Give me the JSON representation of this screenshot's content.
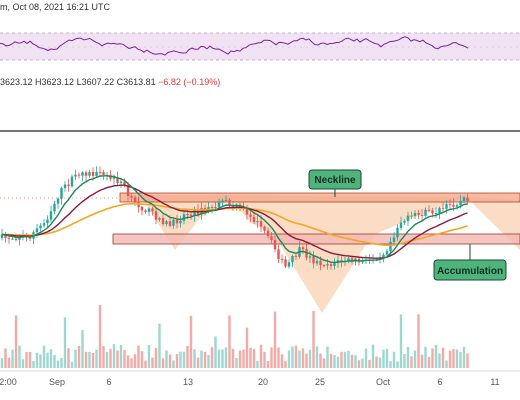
{
  "header": {
    "date_text": "m, Oct 08, 2021 16:21 UTC",
    "ohlc_text": "3623.12 H3623.12 L3607.22 C3613.81",
    "change_text": "−6.82 (−0.19%)"
  },
  "annotations": {
    "neckline_label": "Neckline",
    "accumulation_label": "Accumulation"
  },
  "chart_data": {
    "type": "line",
    "title": "",
    "x_tick_labels": [
      "2:00",
      "Sep",
      "6",
      "13",
      "20",
      "25",
      "Oct",
      "6",
      "11"
    ],
    "series_colors": {
      "up": "#26a69a",
      "down": "#ef5350",
      "ema_fast": "#1b8a5a",
      "ema_mid": "#8b1a3c",
      "ema_slow": "#f5a623",
      "rsi": "#7b1fa2",
      "neckline_zone": "#f4a384",
      "support_zone": "#f2b8b0",
      "pattern_fill": "#f6c193"
    }
  }
}
